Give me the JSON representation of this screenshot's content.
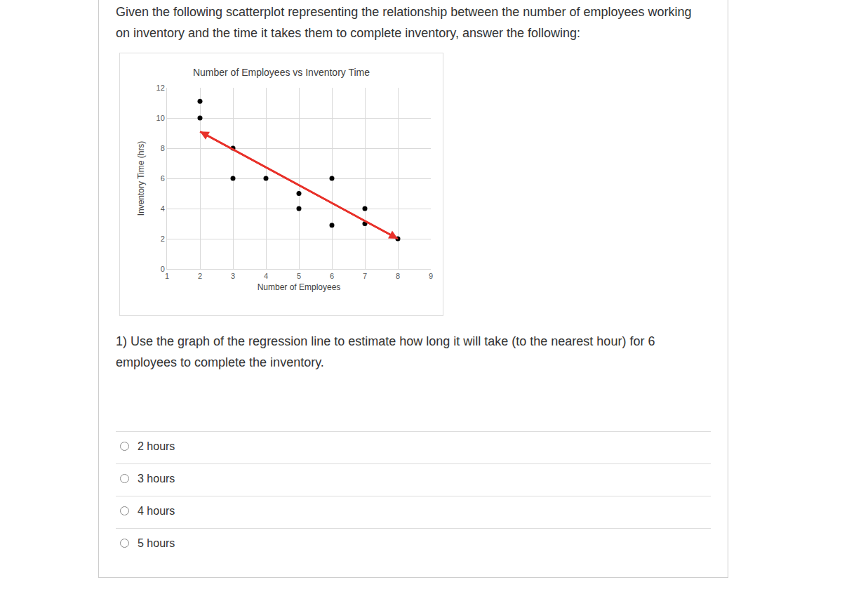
{
  "intro": "Given the following scatterplot representing the relationship between the number of employees working on inventory and the time it takes them to complete inventory, answer the following:",
  "question": "1) Use the graph of the regression line to estimate how long it will take (to the nearest hour) for 6 employees to complete the inventory.",
  "options": [
    "2 hours",
    "3 hours",
    "4 hours",
    "5 hours"
  ],
  "chart_data": {
    "type": "scatter",
    "title": "Number of Employees vs Inventory Time",
    "x_label": "Number of Employees",
    "y_label": "Inventory Time (hrs)",
    "series": [
      {
        "type": "scatter",
        "color": "#000000",
        "marker": "circle",
        "x": [
          2,
          2,
          3,
          3,
          4,
          5,
          5,
          6,
          6,
          7,
          7,
          8
        ],
        "values": [
          11.1,
          10,
          8,
          6,
          6,
          5,
          4,
          6,
          2.9,
          4,
          3,
          2
        ]
      },
      {
        "type": "line",
        "color": "#e8312a",
        "line_style": "solid",
        "marker": "arrow",
        "x": [
          2,
          8
        ],
        "values": [
          9.1,
          2
        ]
      }
    ],
    "xlim": [
      1,
      9
    ],
    "xticks": [
      1,
      2,
      3,
      4,
      5,
      6,
      7,
      8,
      9
    ],
    "ylim": [
      0,
      12
    ],
    "yticks": [
      0,
      2,
      4,
      6,
      8,
      10,
      12
    ],
    "grid": true
  }
}
